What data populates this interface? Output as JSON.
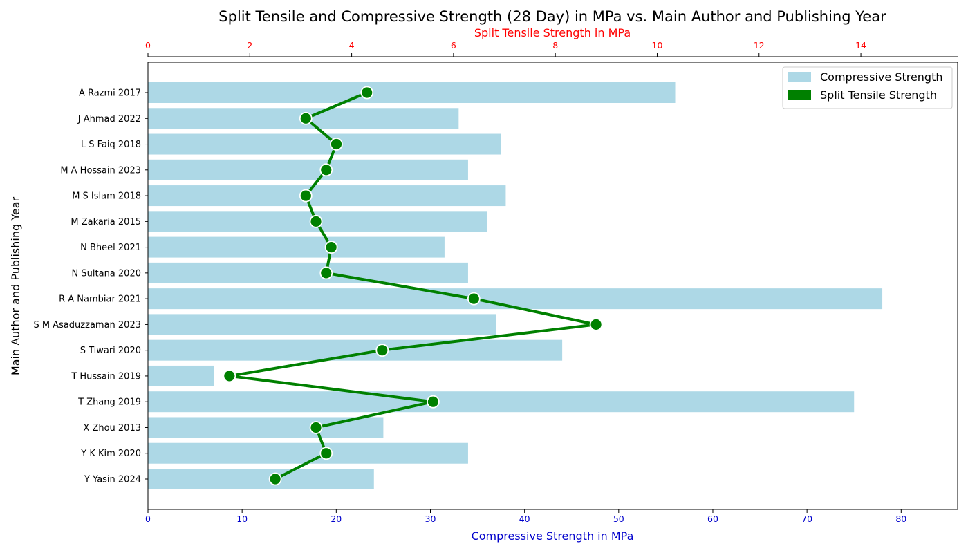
{
  "chart_data": {
    "type": "bar",
    "orientation": "horizontal",
    "title": "Split Tensile and Compressive Strength (28 Day) in MPa vs. Main Author and Publishing Year",
    "ylabel": "Main Author and Publishing Year",
    "x_bottom": {
      "label": "Compressive Strength in MPa",
      "lim": [
        0,
        86
      ],
      "ticks": [
        0,
        10,
        20,
        30,
        40,
        50,
        60,
        70,
        80
      ],
      "color": "#0000cc"
    },
    "x_top": {
      "label": "Split Tensile Strength in MPa",
      "lim": [
        0,
        15.9
      ],
      "ticks": [
        0,
        2,
        4,
        6,
        8,
        10,
        12,
        14
      ],
      "color": "#ff0000"
    },
    "categories": [
      "A Razmi 2017",
      "J Ahmad 2022",
      "L S Faiq 2018",
      "M A Hossain 2023",
      "M S Islam 2018",
      "M Zakaria 2015",
      "N Bheel 2021",
      "N Sultana 2020",
      "R A Nambiar 2021",
      "S M Asaduzzaman 2023",
      "S Tiwari 2020",
      "T Hussain 2019",
      "T Zhang 2019",
      "X Zhou 2013",
      "Y K Kim 2020",
      "Y Yasin 2024"
    ],
    "series": [
      {
        "name": "Compressive Strength",
        "kind": "bar",
        "axis": "bottom",
        "color": "#add8e6",
        "values": [
          56,
          33,
          37.5,
          34,
          38,
          36,
          31.5,
          34,
          78,
          37,
          44,
          7,
          75,
          25,
          34,
          24
        ]
      },
      {
        "name": "Split Tensile Strength",
        "kind": "line",
        "axis": "top",
        "color": "#008000",
        "values": [
          4.3,
          3.1,
          3.7,
          3.5,
          3.1,
          3.3,
          3.6,
          3.5,
          6.4,
          8.8,
          4.6,
          1.6,
          5.6,
          3.3,
          3.5,
          2.5
        ]
      }
    ],
    "legend": {
      "position": "top-right"
    },
    "grid": false
  }
}
